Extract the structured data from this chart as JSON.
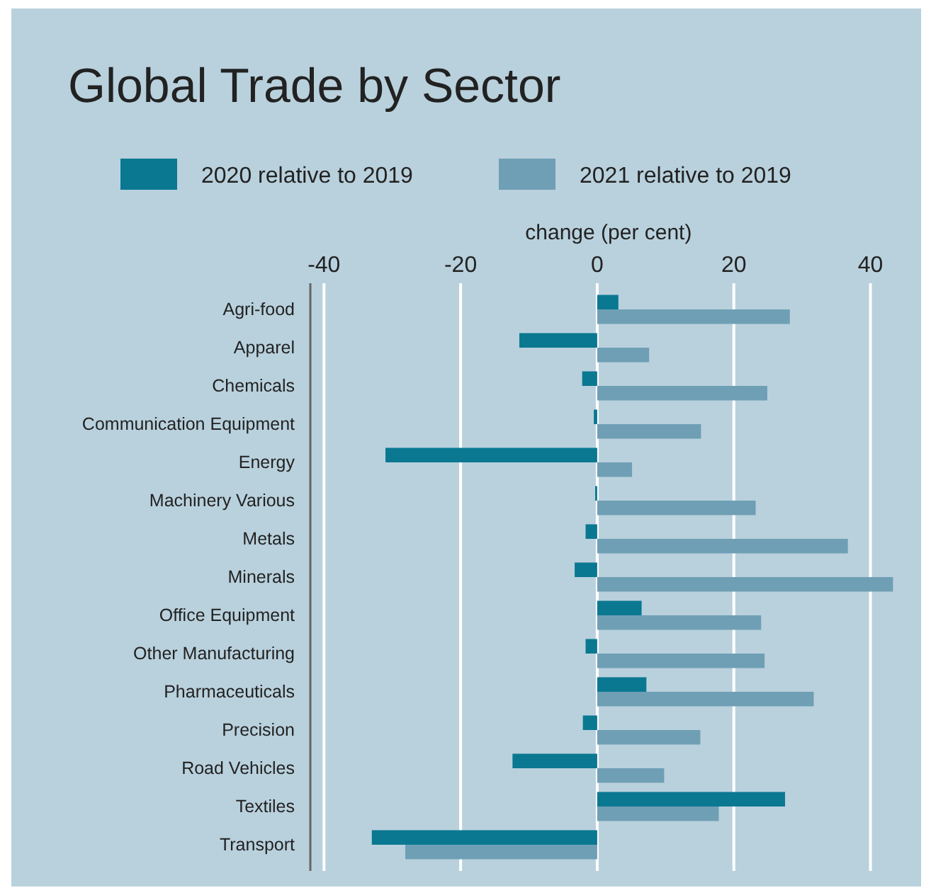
{
  "chart_data": {
    "type": "bar",
    "orientation": "horizontal",
    "title": "Global Trade by Sector",
    "xlabel": "change (per cent)",
    "categories": [
      "Agri-food",
      "Apparel",
      "Chemicals",
      "Communication Equipment",
      "Energy",
      "Machinery Various",
      "Metals",
      "Minerals",
      "Office Equipment",
      "Other Manufacturing",
      "Pharmaceuticals",
      "Precision",
      "Road Vehicles",
      "Textiles",
      "Transport"
    ],
    "series": [
      {
        "name": "2020 relative to 2019",
        "color": "#0a7891",
        "values": [
          3.1,
          -11.4,
          -2.2,
          -0.5,
          -31.0,
          -0.3,
          -1.7,
          -3.3,
          6.5,
          -1.7,
          7.2,
          -2.1,
          -12.4,
          27.5,
          -33.0
        ]
      },
      {
        "name": "2021 relative to 2019",
        "color": "#6f9fb5",
        "values": [
          28.2,
          7.6,
          24.9,
          15.2,
          5.1,
          23.2,
          36.7,
          43.3,
          24.0,
          24.5,
          31.7,
          15.1,
          9.8,
          17.8,
          -28.1
        ]
      }
    ],
    "xlim": [
      -42,
      47
    ],
    "xticks": [
      -40,
      -20,
      0,
      20,
      40
    ],
    "grid": "x",
    "legend": "top"
  }
}
